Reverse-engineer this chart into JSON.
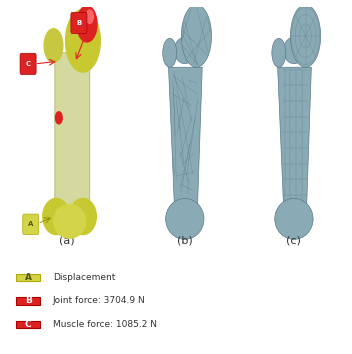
{
  "fig_width": 3.52,
  "fig_height": 3.54,
  "background_color": "#ffffff",
  "subfig_labels": [
    "(a)",
    "(b)",
    "(c)"
  ],
  "subfig_label_fontsize": 8,
  "legend_items": [
    {
      "label": "A",
      "text": "Displacement",
      "box_color": "#d4d44a",
      "text_color": "#555555"
    },
    {
      "label": "B",
      "text": "Joint force: 3704.9 N",
      "box_color": "#cc2222",
      "text_color": "#555555"
    },
    {
      "label": "C",
      "text": "Muscle force: 1085.2 N",
      "box_color": "#cc2222",
      "text_color": "#555555"
    }
  ],
  "legend_fontsize": 6.5,
  "bone_color_a": "#d4d9a0",
  "bone_color_mesh": "#8aaab5",
  "bone_dark": "#5a7a8a"
}
